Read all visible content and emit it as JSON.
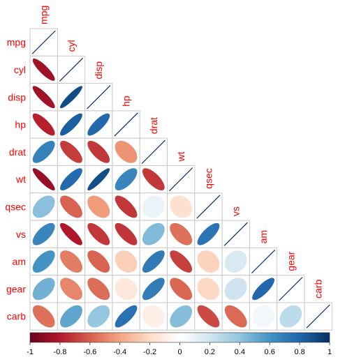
{
  "chart_data": {
    "type": "heatmap",
    "variables": [
      "mpg",
      "cyl",
      "disp",
      "hp",
      "drat",
      "wt",
      "qsec",
      "vs",
      "am",
      "gear",
      "carb"
    ],
    "matrix": [
      [
        1.0,
        -0.85,
        -0.85,
        -0.78,
        0.68,
        -0.87,
        0.42,
        0.66,
        0.6,
        0.48,
        -0.55
      ],
      [
        -0.85,
        1.0,
        0.9,
        0.83,
        -0.7,
        0.78,
        -0.59,
        -0.81,
        -0.52,
        -0.49,
        0.53
      ],
      [
        -0.85,
        0.9,
        1.0,
        0.79,
        -0.71,
        0.89,
        -0.43,
        -0.71,
        -0.59,
        -0.56,
        0.39
      ],
      [
        -0.78,
        0.83,
        0.79,
        1.0,
        -0.45,
        0.66,
        -0.71,
        -0.72,
        -0.24,
        -0.13,
        0.75
      ],
      [
        0.68,
        -0.7,
        -0.71,
        -0.45,
        1.0,
        -0.71,
        0.09,
        0.44,
        0.71,
        0.7,
        -0.09
      ],
      [
        -0.87,
        0.78,
        0.89,
        0.66,
        -0.71,
        1.0,
        -0.17,
        -0.55,
        -0.69,
        -0.58,
        0.43
      ],
      [
        0.42,
        -0.59,
        -0.43,
        -0.71,
        0.09,
        -0.17,
        1.0,
        0.74,
        -0.23,
        -0.21,
        -0.66
      ],
      [
        0.66,
        -0.81,
        -0.71,
        -0.72,
        0.44,
        -0.55,
        0.74,
        1.0,
        0.17,
        0.21,
        -0.57
      ],
      [
        0.6,
        -0.52,
        -0.59,
        -0.24,
        0.71,
        -0.69,
        -0.23,
        0.17,
        1.0,
        0.79,
        0.06
      ],
      [
        0.48,
        -0.49,
        -0.56,
        -0.13,
        0.7,
        -0.58,
        -0.21,
        0.21,
        0.79,
        1.0,
        0.27
      ],
      [
        -0.55,
        0.53,
        0.39,
        0.75,
        -0.09,
        0.43,
        -0.66,
        -0.57,
        0.06,
        0.27,
        1.0
      ]
    ],
    "display": "lower-triangle ellipses",
    "colorbar": {
      "ticks": [
        "-1",
        "-0.8",
        "-0.6",
        "-0.4",
        "-0.2",
        "0",
        "0.2",
        "0.4",
        "0.6",
        "0.8",
        "1"
      ],
      "range": [
        -1,
        1
      ],
      "colors": [
        "#67001f",
        "#b2182b",
        "#d6604d",
        "#f4a582",
        "#fddbc7",
        "#ffffff",
        "#d1e5f0",
        "#92c5de",
        "#4393c3",
        "#2166ac",
        "#053061"
      ]
    },
    "label_color": "#ff0000"
  }
}
